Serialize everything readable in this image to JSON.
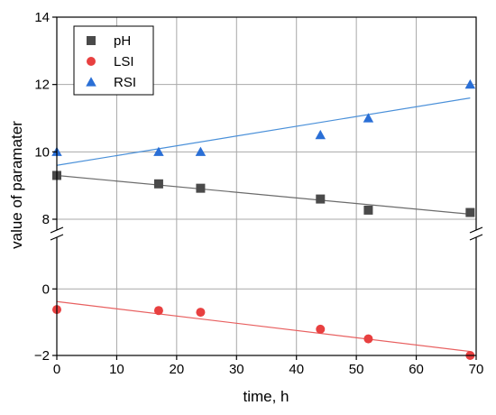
{
  "chart_data": {
    "type": "scatter",
    "xlabel": "time, h",
    "ylabel": "value of paramater",
    "xlim": [
      0,
      70
    ],
    "x_ticks": [
      0,
      10,
      20,
      30,
      40,
      50,
      60,
      70
    ],
    "axis_break": true,
    "y_upper_range": [
      8,
      14
    ],
    "y_upper_ticks": [
      8,
      10,
      12,
      14
    ],
    "y_lower_range": [
      -2,
      1.2
    ],
    "y_lower_ticks": [
      -2,
      0
    ],
    "grid": true,
    "legend_position": "top-left",
    "series": [
      {
        "name": "pH",
        "marker": "square",
        "color": "#4a4a4a",
        "x": [
          0,
          17,
          24,
          44,
          52,
          69
        ],
        "y": [
          9.3,
          9.05,
          8.92,
          8.6,
          8.27,
          8.2
        ],
        "fit": {
          "x": [
            0,
            69
          ],
          "y": [
            9.3,
            8.15
          ]
        },
        "fit_color": "#6b6b6b"
      },
      {
        "name": "LSI",
        "marker": "circle",
        "color": "#e84040",
        "x": [
          0,
          17,
          24,
          44,
          52,
          69
        ],
        "y": [
          -0.62,
          -0.65,
          -0.7,
          -1.21,
          -1.5,
          -2.0
        ],
        "fit": {
          "x": [
            0,
            69
          ],
          "y": [
            -0.38,
            -1.88
          ]
        },
        "fit_color": "#e86060"
      },
      {
        "name": "RSI",
        "marker": "triangle",
        "color": "#2a6fd6",
        "x": [
          0,
          17,
          24,
          44,
          52,
          69
        ],
        "y": [
          10.0,
          10.0,
          10.0,
          10.5,
          11.0,
          12.0
        ],
        "fit": {
          "x": [
            0,
            69
          ],
          "y": [
            9.6,
            11.6
          ]
        },
        "fit_color": "#4a90d9"
      }
    ]
  }
}
